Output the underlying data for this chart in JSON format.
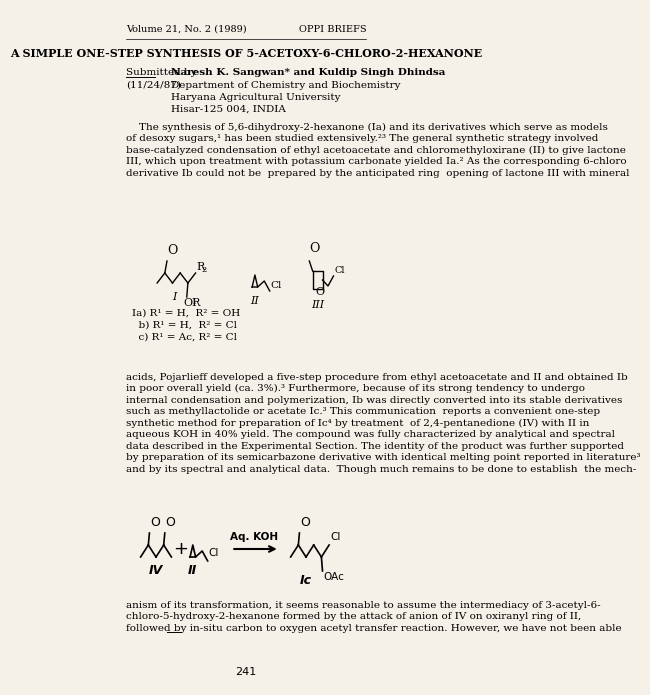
{
  "bg_color": "#f5f0e8",
  "header_left": "Volume 21, No. 2 (1989)",
  "header_right": "OPPI BRIEFS",
  "title": "A SIMPLE ONE-STEP SYNTHESIS OF 5-ACETOXY-6-CHLORO-2-HEXANONE",
  "submitted_label": "Submitted by",
  "submitted_date": "(11/24/87)",
  "author": "Naresh K. Sangwan* and Kuldip Singh Dhindsa",
  "affil1": "Department of Chemistry and Biochemistry",
  "affil2": "Haryana Agricultural University",
  "affil3": "Hisar-125 004, INDIA",
  "para1": "    The synthesis of 5,6-dihydroxy-2-hexanone (Ia) and its derivatives which serve as models\nof desoxy sugars,¹ has been studied extensively.²³ The general synthetic strategy involved\nbase-catalyzed condensation of ethyl acetoacetate and chloromethyloxirane (II) to give lactone\nIII, which upon treatment with potassium carbonate yielded Ia.² As the corresponding 6-chloro\nderivative Ib could not be  prepared by the anticipated ring  opening of lactone III with mineral",
  "sub_a": "Ia) R¹ = H,  R² = OH",
  "sub_b": "  b) R¹ = H,  R² = Cl",
  "sub_c": "  c) R¹ = Ac, R² = Cl",
  "label_I": "I",
  "label_II": "II",
  "label_III": "III",
  "para2": "acids, Pojarlieff developed a five-step procedure from ethyl acetoacetate and II and obtained Ib\nin poor overall yield (ca. 3%).³ Furthermore, because of its strong tendency to undergo\ninternal condensation and polymerization, Ib was directly converted into its stable derivatives\nsuch as methyllactolide or acetate Ic.³ This communication  reports a convenient one-step\nsynthetic method for preparation of Ic⁴ by treatment  of 2,4-pentanedione (IV) with II in\naqueous KOH in 40% yield. The compound was fully characterized by analytical and spectral\ndata described in the Experimental Section. The identity of the product was further supported\nby preparation of its semicarbazone derivative with identical melting point reported in literature³\nand by its spectral and analytical data.  Though much remains to be done to establish  the mech-",
  "reaction_label": "Aq. KOH",
  "label_IV": "IV",
  "label_Ic": "Ic",
  "label_OAc": "OAc",
  "para3": "anism of its transformation, it seems reasonable to assume the intermediacy of 3-acetyl-6-\nchloro-5-hydroxy-2-hexanone formed by the attack of anion of IV on oxiranyl ring of II,\nfollowed by in-situ carbon to oxygen acetyl transfer reaction. However, we have not been able",
  "page_num": "241"
}
